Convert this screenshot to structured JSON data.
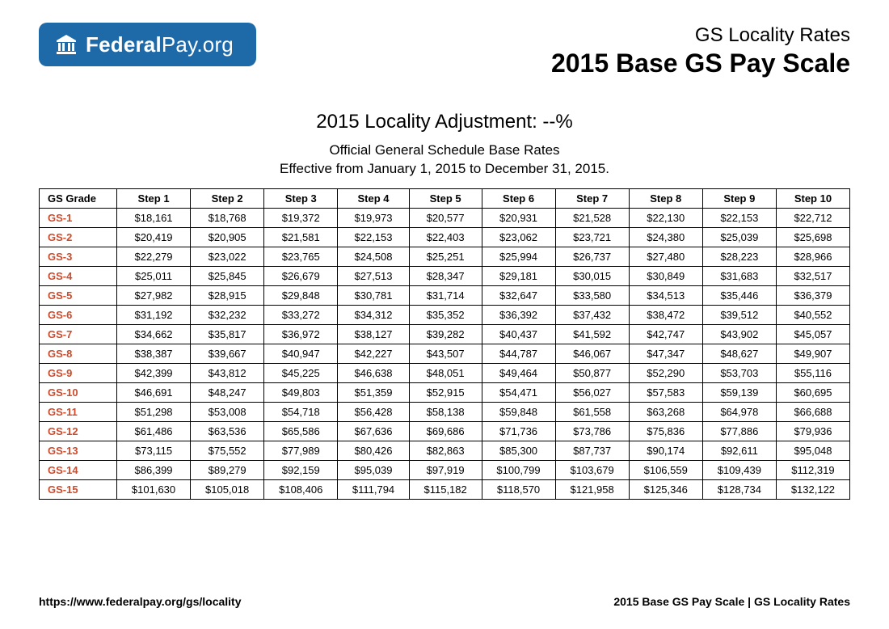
{
  "logo": {
    "name_bold": "Federal",
    "name_rest": "Pay.org",
    "badge_bg": "#1e6aa8",
    "badge_fg": "#ffffff"
  },
  "header": {
    "subtitle": "GS Locality Rates",
    "title": "2015 Base GS Pay Scale"
  },
  "mid": {
    "adjustment_line": "2015 Locality Adjustment: --%",
    "desc_line1": "Official General Schedule Base Rates",
    "desc_line2": "Effective from January 1, 2015 to December 31, 2015."
  },
  "table": {
    "grade_header": "GS Grade",
    "step_labels": [
      "Step 1",
      "Step 2",
      "Step 3",
      "Step 4",
      "Step 5",
      "Step 6",
      "Step 7",
      "Step 8",
      "Step 9",
      "Step 10"
    ],
    "grade_color": "#cc4b2c",
    "border_color": "#000000",
    "rows": [
      {
        "grade": "GS-1",
        "cells": [
          "$18,161",
          "$18,768",
          "$19,372",
          "$19,973",
          "$20,577",
          "$20,931",
          "$21,528",
          "$22,130",
          "$22,153",
          "$22,712"
        ]
      },
      {
        "grade": "GS-2",
        "cells": [
          "$20,419",
          "$20,905",
          "$21,581",
          "$22,153",
          "$22,403",
          "$23,062",
          "$23,721",
          "$24,380",
          "$25,039",
          "$25,698"
        ]
      },
      {
        "grade": "GS-3",
        "cells": [
          "$22,279",
          "$23,022",
          "$23,765",
          "$24,508",
          "$25,251",
          "$25,994",
          "$26,737",
          "$27,480",
          "$28,223",
          "$28,966"
        ]
      },
      {
        "grade": "GS-4",
        "cells": [
          "$25,011",
          "$25,845",
          "$26,679",
          "$27,513",
          "$28,347",
          "$29,181",
          "$30,015",
          "$30,849",
          "$31,683",
          "$32,517"
        ]
      },
      {
        "grade": "GS-5",
        "cells": [
          "$27,982",
          "$28,915",
          "$29,848",
          "$30,781",
          "$31,714",
          "$32,647",
          "$33,580",
          "$34,513",
          "$35,446",
          "$36,379"
        ]
      },
      {
        "grade": "GS-6",
        "cells": [
          "$31,192",
          "$32,232",
          "$33,272",
          "$34,312",
          "$35,352",
          "$36,392",
          "$37,432",
          "$38,472",
          "$39,512",
          "$40,552"
        ]
      },
      {
        "grade": "GS-7",
        "cells": [
          "$34,662",
          "$35,817",
          "$36,972",
          "$38,127",
          "$39,282",
          "$40,437",
          "$41,592",
          "$42,747",
          "$43,902",
          "$45,057"
        ]
      },
      {
        "grade": "GS-8",
        "cells": [
          "$38,387",
          "$39,667",
          "$40,947",
          "$42,227",
          "$43,507",
          "$44,787",
          "$46,067",
          "$47,347",
          "$48,627",
          "$49,907"
        ]
      },
      {
        "grade": "GS-9",
        "cells": [
          "$42,399",
          "$43,812",
          "$45,225",
          "$46,638",
          "$48,051",
          "$49,464",
          "$50,877",
          "$52,290",
          "$53,703",
          "$55,116"
        ]
      },
      {
        "grade": "GS-10",
        "cells": [
          "$46,691",
          "$48,247",
          "$49,803",
          "$51,359",
          "$52,915",
          "$54,471",
          "$56,027",
          "$57,583",
          "$59,139",
          "$60,695"
        ]
      },
      {
        "grade": "GS-11",
        "cells": [
          "$51,298",
          "$53,008",
          "$54,718",
          "$56,428",
          "$58,138",
          "$59,848",
          "$61,558",
          "$63,268",
          "$64,978",
          "$66,688"
        ]
      },
      {
        "grade": "GS-12",
        "cells": [
          "$61,486",
          "$63,536",
          "$65,586",
          "$67,636",
          "$69,686",
          "$71,736",
          "$73,786",
          "$75,836",
          "$77,886",
          "$79,936"
        ]
      },
      {
        "grade": "GS-13",
        "cells": [
          "$73,115",
          "$75,552",
          "$77,989",
          "$80,426",
          "$82,863",
          "$85,300",
          "$87,737",
          "$90,174",
          "$92,611",
          "$95,048"
        ]
      },
      {
        "grade": "GS-14",
        "cells": [
          "$86,399",
          "$89,279",
          "$92,159",
          "$95,039",
          "$97,919",
          "$100,799",
          "$103,679",
          "$106,559",
          "$109,439",
          "$112,319"
        ]
      },
      {
        "grade": "GS-15",
        "cells": [
          "$101,630",
          "$105,018",
          "$108,406",
          "$111,794",
          "$115,182",
          "$118,570",
          "$121,958",
          "$125,346",
          "$128,734",
          "$132,122"
        ]
      }
    ]
  },
  "footer": {
    "left": "https://www.federalpay.org/gs/locality",
    "right": "2015 Base GS Pay Scale | GS Locality Rates"
  }
}
